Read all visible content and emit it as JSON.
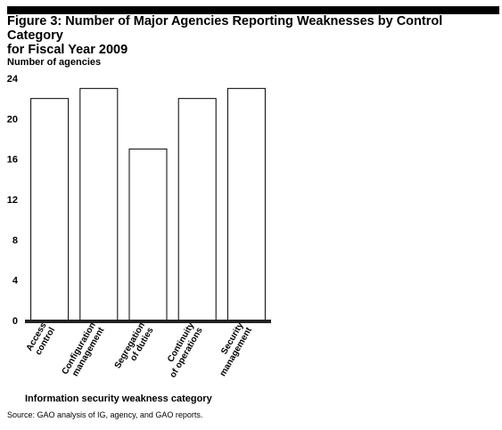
{
  "figure": {
    "title_line1": "Figure 3: Number of Major Agencies Reporting Weaknesses by Control Category",
    "title_line2": "for Fiscal Year 2009",
    "source": "Source: GAO analysis of IG, agency, and GAO reports."
  },
  "chart_data": {
    "type": "bar",
    "ylabel": "Number of agencies",
    "xlabel": "Information security weakness category",
    "ylim": [
      0,
      24
    ],
    "yticks": [
      0,
      4,
      8,
      12,
      16,
      20,
      24
    ],
    "grid": false,
    "categories": [
      [
        "Access",
        "control"
      ],
      [
        "Configuration",
        "management"
      ],
      [
        "Segregation",
        "of duties"
      ],
      [
        "Continuity",
        "of operations"
      ],
      [
        "Security",
        "management"
      ]
    ],
    "values": [
      22,
      23,
      17,
      22,
      23
    ],
    "colors": {
      "bar_fill": "#ffffff",
      "bar_stroke": "#000000",
      "axis": "#222222"
    }
  }
}
